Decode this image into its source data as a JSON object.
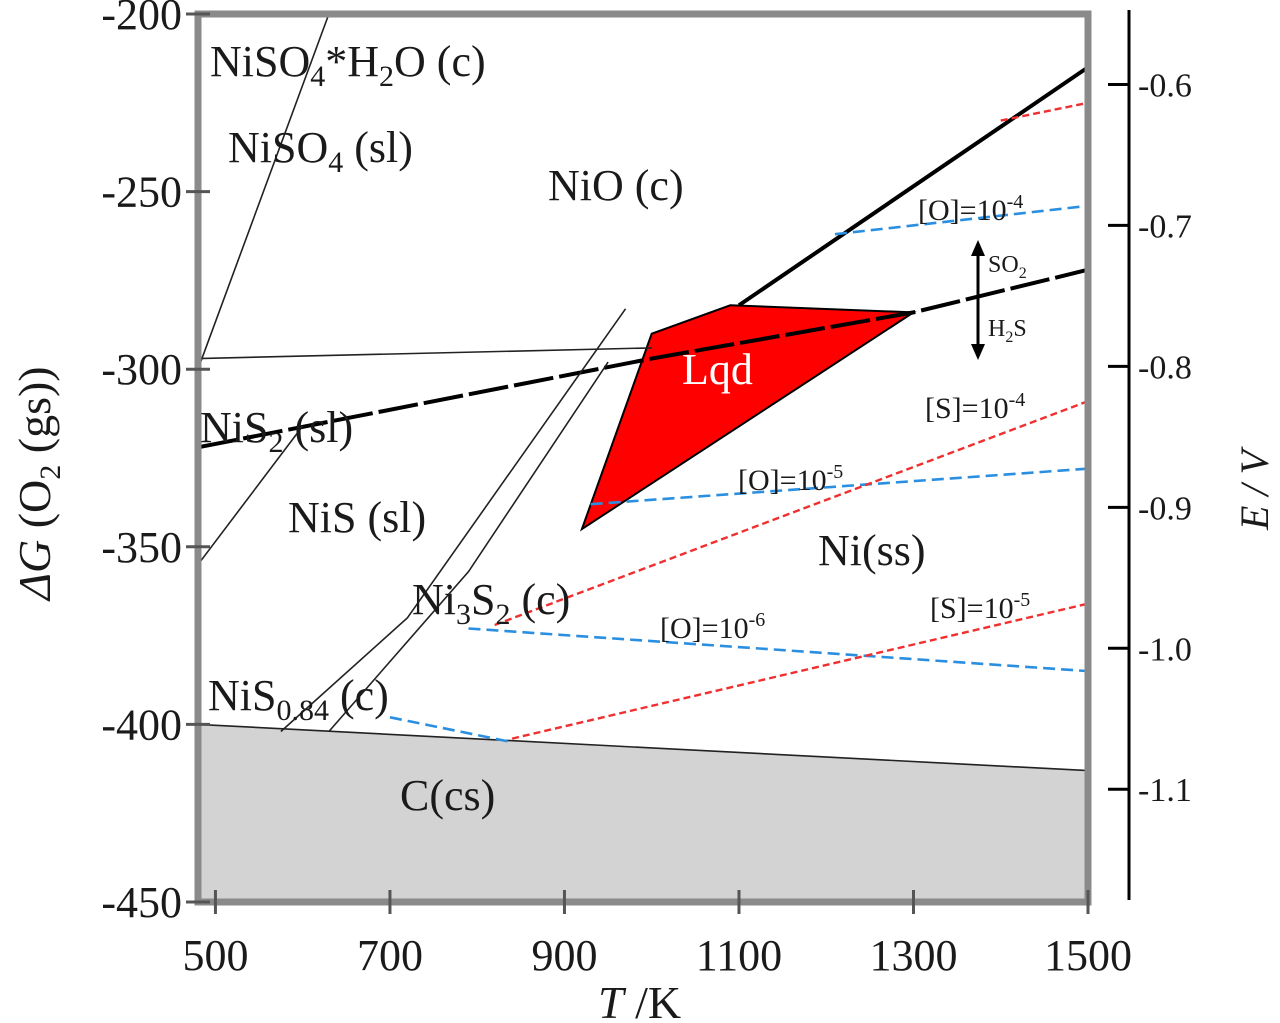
{
  "chart_data": {
    "type": "phase-diagram",
    "xlabel_sym": "T",
    "xlabel_unit": " /K",
    "ylabel_prefix": "ΔG",
    "ylabel_rest": "(O",
    "ylabel_sub": "2",
    "ylabel_end": " (gs))",
    "y2label": "E / V",
    "xlim": [
      480,
      1500
    ],
    "ylim": [
      -450,
      -200
    ],
    "y2lim": [
      -0.55,
      -1.18
    ],
    "x_ticks": [
      "500",
      "700",
      "900",
      "1100",
      "1300",
      "1500"
    ],
    "y_ticks": [
      "-200",
      "-250",
      "-300",
      "-350",
      "-400",
      "-450"
    ],
    "y2_ticks": [
      "-0.6",
      "-0.7",
      "-0.8",
      "-0.9",
      "-1.0",
      "-1.1"
    ],
    "regions": {
      "niso4_h2o": "NiSO4*H2O (c)",
      "niso4": "NiSO4 (sl)",
      "nio": "NiO (c)",
      "nis2": "NiS2 (sl)",
      "nis": "NiS (sl)",
      "ni3s2": "Ni3S2 (c)",
      "nis084": "NiS0.84 (c)",
      "ccs": "C(cs)",
      "niss": "Ni(ss)",
      "lqd": "Lqd"
    },
    "annotations": {
      "o_1e4": "[O]=10-4",
      "o_1e5": "[O]=10-5",
      "o_1e6": "[O]=10-6",
      "s_1e4": "[S]=10-4",
      "s_1e5": "[S]=10-5",
      "so2": "SO2",
      "h2s": "H2S"
    },
    "series": [
      {
        "style": "thick-black",
        "x": [
          1100,
          1500
        ],
        "y": [
          -282,
          -215
        ]
      },
      {
        "style": "thick-black-dashed",
        "x": [
          480,
          1000,
          1300,
          1500
        ],
        "y": [
          -322,
          -297,
          -284,
          -272
        ]
      },
      {
        "style": "thin-black",
        "x": [
          480,
          1000
        ],
        "y": [
          -297,
          -294
        ]
      },
      {
        "style": "thin-black",
        "x": [
          480,
          1500
        ],
        "y": [
          -400,
          -413
        ]
      },
      {
        "style": "thin-black",
        "x": [
          480,
          630
        ],
        "y": [
          -300,
          -200
        ]
      },
      {
        "style": "thin-black",
        "x": [
          480,
          600
        ],
        "y": [
          -355,
          -316
        ]
      },
      {
        "style": "thin-black",
        "x": [
          630,
          790,
          950
        ],
        "y": [
          -402,
          -357,
          -298
        ]
      },
      {
        "style": "thin-black",
        "x": [
          575,
          720,
          970
        ],
        "y": [
          -402,
          -370,
          -283
        ]
      },
      {
        "style": "blue-dashed",
        "x": [
          1210,
          1500
        ],
        "y": [
          -262,
          -254
        ]
      },
      {
        "style": "blue-dashed",
        "x": [
          930,
          1500
        ],
        "y": [
          -338,
          -328
        ]
      },
      {
        "style": "blue-dashed",
        "x": [
          790,
          1500
        ],
        "y": [
          -373,
          -385
        ]
      },
      {
        "style": "blue-dashed",
        "x": [
          700,
          840
        ],
        "y": [
          -398,
          -405
        ]
      },
      {
        "style": "red-dashed",
        "x": [
          1400,
          1500
        ],
        "y": [
          -230,
          -225
        ]
      },
      {
        "style": "red-dashed",
        "x": [
          820,
          1500
        ],
        "y": [
          -372,
          -309
        ]
      },
      {
        "style": "red-dashed",
        "x": [
          840,
          1500
        ],
        "y": [
          -404,
          -366
        ]
      }
    ],
    "liquid_region": {
      "x": [
        1000,
        1090,
        1300,
        920,
        1000
      ],
      "y": [
        -290,
        -282,
        -284,
        -345,
        -290
      ]
    }
  }
}
